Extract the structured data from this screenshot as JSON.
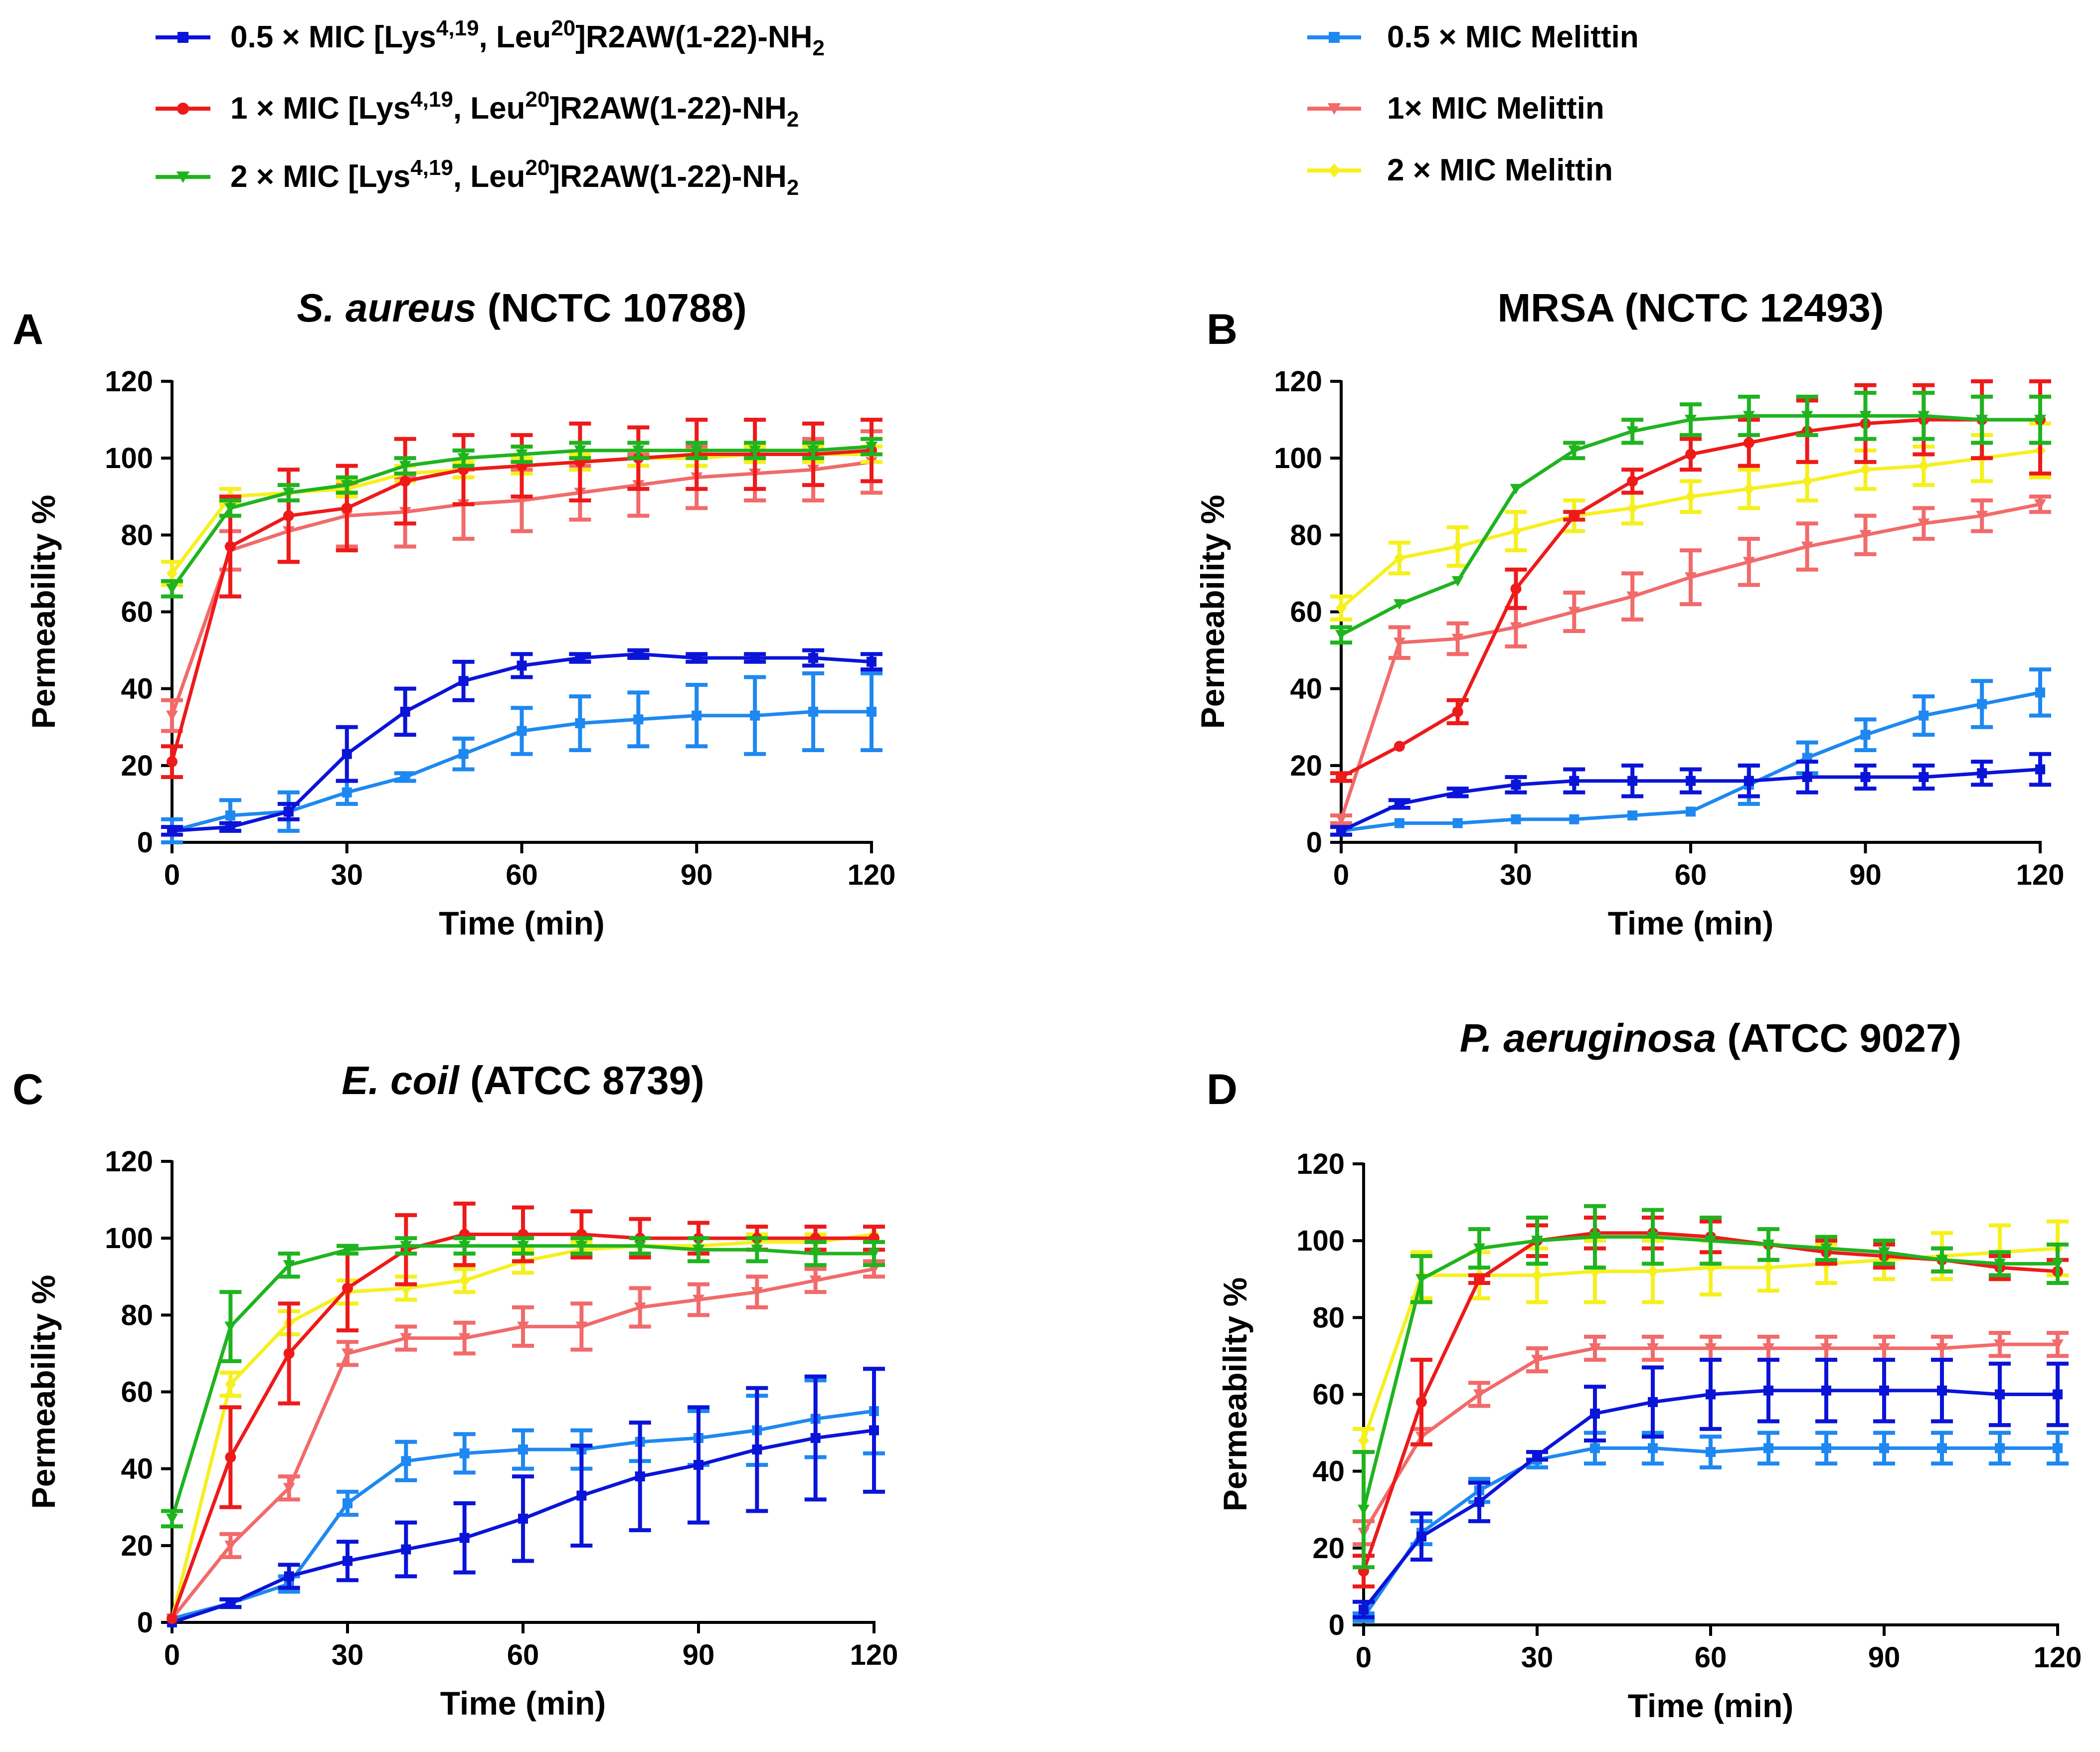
{
  "legend": {
    "left": [
      {
        "key": "pep05",
        "prefix": "0.5 × MIC [Lys",
        "sup1": "4,19",
        "mid": ", Leu",
        "sup2": "20",
        "suffix": "]R2AW(1-22)-NH",
        "sub": "2",
        "color": "#0a14d8",
        "marker": "square"
      },
      {
        "key": "pep1",
        "prefix": "1 × MIC [Lys",
        "sup1": "4,19",
        "mid": ", Leu",
        "sup2": "20",
        "suffix": "]R2AW(1-22)-NH",
        "sub": "2",
        "color": "#ee1a1a",
        "marker": "circle"
      },
      {
        "key": "pep2",
        "prefix": "2 × MIC [Lys",
        "sup1": "4,19",
        "mid": ", Leu",
        "sup2": "20",
        "suffix": "]R2AW(1-22)-NH",
        "sub": "2",
        "color": "#1fb41f",
        "marker": "triangle-down"
      }
    ],
    "right": [
      {
        "key": "mel05",
        "label": "0.5 × MIC Melittin",
        "color": "#1e88f0",
        "marker": "square"
      },
      {
        "key": "mel1",
        "label": "1× MIC Melittin",
        "color": "#f26a6a",
        "marker": "triangle-down"
      },
      {
        "key": "mel2",
        "label": "2 × MIC Melittin",
        "color": "#f5f01e",
        "marker": "diamond"
      }
    ]
  },
  "chart_data": [
    {
      "type": "line",
      "panel": "A",
      "title_italic": "S. aureus",
      "title_rest": " (NCTC 10788)",
      "xlabel": "Time (min)",
      "ylabel": "Permeability %",
      "xlim": [
        0,
        120
      ],
      "ylim": [
        0,
        120
      ],
      "xticks": [
        0,
        30,
        60,
        90,
        120
      ],
      "yticks": [
        0,
        20,
        40,
        60,
        80,
        100,
        120
      ],
      "x": [
        0,
        10,
        20,
        30,
        40,
        50,
        60,
        70,
        80,
        90,
        100,
        110,
        120
      ],
      "series": [
        {
          "key": "mel05",
          "values": [
            3,
            7,
            8,
            13,
            17,
            23,
            29,
            31,
            32,
            33,
            33,
            34,
            34
          ],
          "errors": [
            3,
            4,
            5,
            3,
            1,
            4,
            6,
            7,
            7,
            8,
            10,
            10,
            10
          ]
        },
        {
          "key": "mel1",
          "values": [
            33,
            76,
            81,
            85,
            86,
            88,
            89,
            91,
            93,
            95,
            96,
            97,
            99
          ],
          "errors": [
            4,
            5,
            8,
            8,
            9,
            9,
            8,
            7,
            8,
            8,
            7,
            8,
            8
          ]
        },
        {
          "key": "mel2",
          "values": [
            70,
            90,
            91,
            92,
            96,
            97,
            98,
            99,
            100,
            100,
            101,
            101,
            101
          ],
          "errors": [
            3,
            2,
            2,
            2,
            2,
            2,
            2,
            2,
            2,
            2,
            2,
            2,
            2
          ]
        },
        {
          "key": "pep05",
          "values": [
            3,
            4,
            8,
            23,
            34,
            42,
            46,
            48,
            49,
            48,
            48,
            48,
            47
          ],
          "errors": [
            1,
            1,
            2,
            7,
            6,
            5,
            3,
            1,
            1,
            1,
            1,
            2,
            2
          ]
        },
        {
          "key": "pep1",
          "values": [
            21,
            77,
            85,
            87,
            94,
            97,
            98,
            99,
            100,
            101,
            101,
            101,
            102
          ],
          "errors": [
            4,
            13,
            12,
            11,
            11,
            9,
            8,
            10,
            8,
            9,
            9,
            8,
            8
          ]
        },
        {
          "key": "pep2",
          "values": [
            66,
            87,
            91,
            93,
            98,
            100,
            101,
            102,
            102,
            102,
            102,
            102,
            103
          ],
          "errors": [
            2,
            2,
            2,
            2,
            2,
            2,
            2,
            2,
            2,
            2,
            2,
            2,
            2
          ]
        }
      ]
    },
    {
      "type": "line",
      "panel": "B",
      "title_italic": "",
      "title_rest": "MRSA (NCTC 12493)",
      "xlabel": "Time (min)",
      "ylabel": "Permeability %",
      "xlim": [
        0,
        120
      ],
      "ylim": [
        0,
        120
      ],
      "xticks": [
        0,
        30,
        60,
        90,
        120
      ],
      "yticks": [
        0,
        20,
        40,
        60,
        80,
        100,
        120
      ],
      "x": [
        0,
        10,
        20,
        30,
        40,
        50,
        60,
        70,
        80,
        90,
        100,
        110,
        120
      ],
      "series": [
        {
          "key": "mel05",
          "values": [
            3,
            5,
            5,
            6,
            6,
            7,
            8,
            15,
            22,
            28,
            33,
            36,
            39
          ],
          "errors": [
            1,
            0,
            0,
            0,
            0,
            0,
            0,
            5,
            4,
            4,
            5,
            6,
            6
          ]
        },
        {
          "key": "mel1",
          "values": [
            6,
            52,
            53,
            56,
            60,
            64,
            69,
            73,
            77,
            80,
            83,
            85,
            88
          ],
          "errors": [
            1,
            4,
            4,
            5,
            5,
            6,
            7,
            6,
            6,
            5,
            4,
            4,
            2
          ]
        },
        {
          "key": "mel2",
          "values": [
            61,
            74,
            77,
            81,
            85,
            87,
            90,
            92,
            94,
            97,
            98,
            100,
            102
          ],
          "errors": [
            3,
            4,
            5,
            5,
            4,
            4,
            4,
            5,
            5,
            5,
            5,
            6,
            7
          ]
        },
        {
          "key": "pep05",
          "values": [
            3,
            10,
            13,
            15,
            16,
            16,
            16,
            16,
            17,
            17,
            17,
            18,
            19
          ],
          "errors": [
            1,
            1,
            1,
            2,
            3,
            4,
            3,
            4,
            4,
            3,
            3,
            3,
            4
          ]
        },
        {
          "key": "pep1",
          "values": [
            17,
            25,
            34,
            66,
            85,
            94,
            101,
            104,
            107,
            109,
            110,
            110,
            110
          ],
          "errors": [
            1,
            0,
            3,
            5,
            1,
            3,
            4,
            6,
            8,
            10,
            9,
            10,
            14
          ]
        },
        {
          "key": "pep2",
          "values": [
            54,
            62,
            68,
            92,
            102,
            107,
            110,
            111,
            111,
            111,
            111,
            110,
            110
          ],
          "errors": [
            2,
            0,
            0,
            0,
            2,
            3,
            4,
            5,
            5,
            6,
            6,
            6,
            6
          ]
        }
      ]
    },
    {
      "type": "line",
      "panel": "C",
      "title_italic": "E. coil",
      "title_rest": " (ATCC 8739)",
      "xlabel": "Time (min)",
      "ylabel": "Permeability %",
      "xlim": [
        0,
        120
      ],
      "ylim": [
        0,
        120
      ],
      "xticks": [
        0,
        30,
        60,
        90,
        120
      ],
      "yticks": [
        0,
        20,
        40,
        60,
        80,
        100,
        120
      ],
      "x": [
        0,
        10,
        20,
        30,
        40,
        50,
        60,
        70,
        80,
        90,
        100,
        110,
        120
      ],
      "series": [
        {
          "key": "mel05",
          "values": [
            1,
            5,
            10,
            31,
            42,
            44,
            45,
            45,
            47,
            48,
            50,
            53,
            55
          ],
          "errors": [
            0,
            1,
            2,
            3,
            5,
            5,
            5,
            5,
            5,
            7,
            9,
            10,
            11
          ]
        },
        {
          "key": "mel1",
          "values": [
            1,
            20,
            35,
            70,
            74,
            74,
            77,
            77,
            82,
            84,
            86,
            89,
            92
          ],
          "errors": [
            0,
            3,
            3,
            3,
            3,
            4,
            5,
            6,
            5,
            4,
            4,
            3,
            2
          ]
        },
        {
          "key": "mel2",
          "values": [
            1,
            62,
            78,
            86,
            87,
            89,
            94,
            97,
            98,
            98,
            99,
            99,
            101
          ],
          "errors": [
            0,
            3,
            3,
            3,
            3,
            3,
            3,
            2,
            2,
            2,
            2,
            2,
            2
          ]
        },
        {
          "key": "pep05",
          "values": [
            0,
            5,
            12,
            16,
            19,
            22,
            27,
            33,
            38,
            41,
            45,
            48,
            50
          ],
          "errors": [
            0,
            1,
            3,
            5,
            7,
            9,
            11,
            13,
            14,
            15,
            16,
            16,
            16
          ]
        },
        {
          "key": "pep1",
          "values": [
            1,
            43,
            70,
            87,
            97,
            101,
            101,
            101,
            100,
            100,
            100,
            100,
            100
          ],
          "errors": [
            0,
            13,
            13,
            11,
            9,
            8,
            7,
            6,
            5,
            4,
            3,
            3,
            3
          ]
        },
        {
          "key": "pep2",
          "values": [
            27,
            77,
            93,
            97,
            98,
            98,
            98,
            98,
            98,
            97,
            97,
            96,
            96
          ],
          "errors": [
            2,
            9,
            3,
            1,
            2,
            2,
            2,
            2,
            2,
            3,
            3,
            3,
            3
          ]
        }
      ]
    },
    {
      "type": "line",
      "panel": "D",
      "title_italic": "P. aeruginosa",
      "title_rest": " (ATCC 9027)",
      "xlabel": "Time (min)",
      "ylabel": "Permeability %",
      "xlim": [
        0,
        120
      ],
      "ylim": [
        0,
        120
      ],
      "xticks": [
        0,
        30,
        60,
        90,
        120
      ],
      "yticks": [
        0,
        20,
        40,
        60,
        80,
        100,
        120
      ],
      "x": [
        0,
        10,
        20,
        30,
        40,
        50,
        60,
        70,
        80,
        90,
        100,
        110,
        120
      ],
      "series": [
        {
          "key": "mel05",
          "values": [
            2,
            24,
            35,
            43,
            46,
            46,
            45,
            46,
            46,
            46,
            46,
            46,
            46
          ],
          "errors": [
            1,
            3,
            3,
            2,
            4,
            4,
            4,
            4,
            4,
            4,
            4,
            4,
            4
          ]
        },
        {
          "key": "mel1",
          "values": [
            24,
            49,
            60,
            69,
            72,
            72,
            72,
            72,
            72,
            72,
            72,
            73,
            73
          ],
          "errors": [
            3,
            2,
            3,
            3,
            3,
            3,
            3,
            3,
            3,
            3,
            3,
            3,
            3
          ]
        },
        {
          "key": "mel2",
          "values": [
            48,
            91,
            91,
            91,
            92,
            92,
            93,
            93,
            94,
            95,
            96,
            97,
            98
          ],
          "errors": [
            3,
            6,
            6,
            7,
            8,
            8,
            7,
            6,
            5,
            5,
            6,
            7,
            7
          ]
        },
        {
          "key": "pep05",
          "values": [
            4,
            23,
            32,
            44,
            55,
            58,
            60,
            61,
            61,
            61,
            61,
            60,
            60
          ],
          "errors": [
            2,
            6,
            5,
            1,
            7,
            9,
            9,
            8,
            8,
            8,
            8,
            8,
            8
          ]
        },
        {
          "key": "pep1",
          "values": [
            14,
            58,
            90,
            100,
            102,
            102,
            101,
            99,
            97,
            96,
            95,
            93,
            92
          ],
          "errors": [
            4,
            11,
            1,
            4,
            4,
            4,
            4,
            4,
            3,
            3,
            3,
            3,
            3
          ]
        },
        {
          "key": "pep2",
          "values": [
            30,
            90,
            98,
            100,
            101,
            101,
            100,
            99,
            98,
            97,
            95,
            94,
            94
          ],
          "errors": [
            15,
            6,
            5,
            6,
            8,
            7,
            6,
            4,
            3,
            3,
            3,
            3,
            5
          ]
        }
      ]
    }
  ]
}
